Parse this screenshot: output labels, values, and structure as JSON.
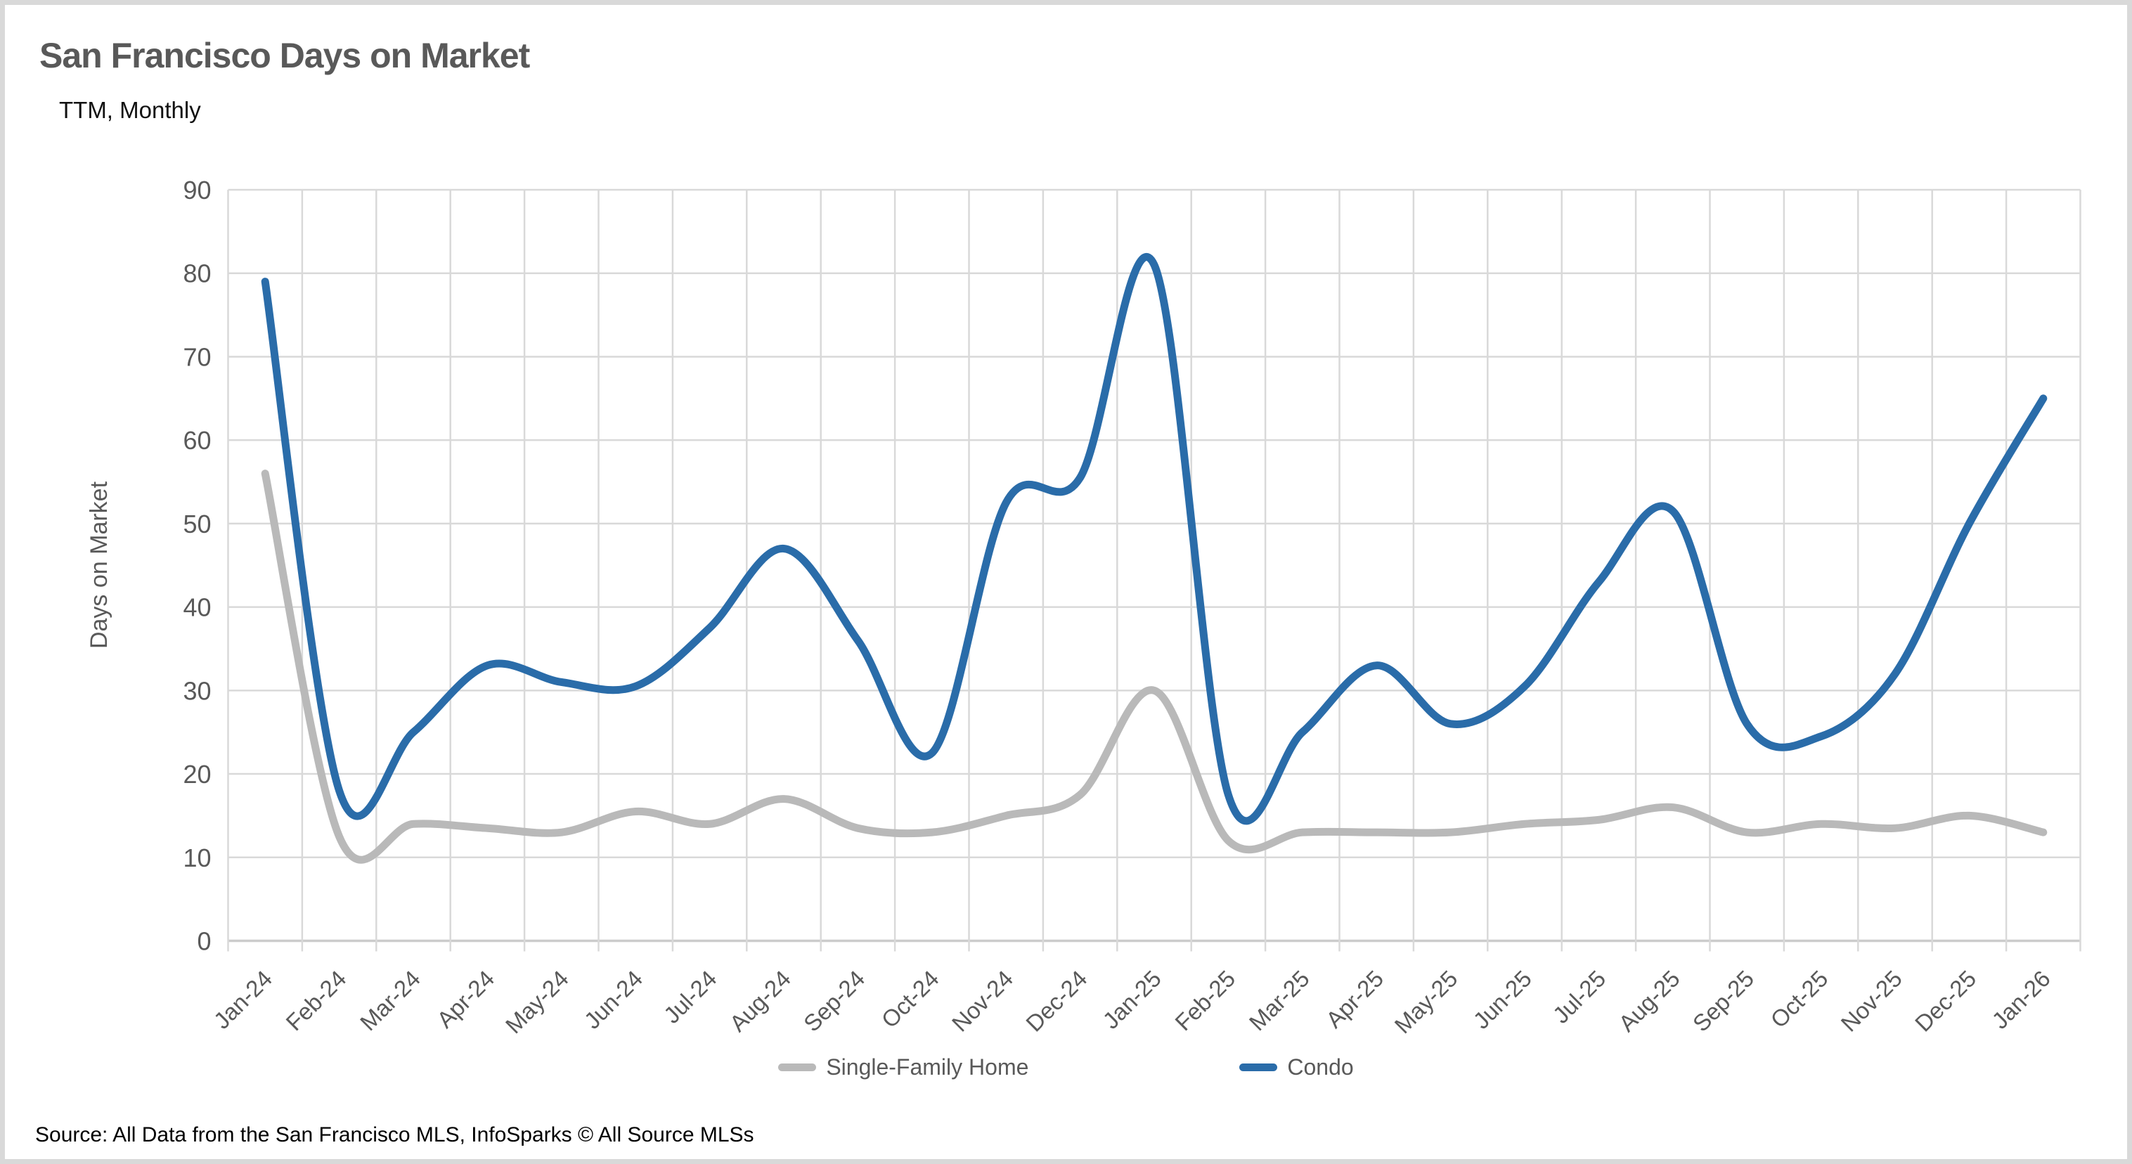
{
  "header": {
    "title": "San Francisco Days on Market",
    "subtitle": "TTM, Monthly"
  },
  "footer": {
    "source": "Source: All Data from the San Francisco MLS, InfoSparks © All Source MLSs"
  },
  "palette": {
    "title_text": "#595959",
    "axis_text": "#595959",
    "gridline": "#d9d9d9",
    "axis_line": "#cccccc",
    "frame_border": "#d9d9d9",
    "sfh_line": "#b9b9b9",
    "condo_line": "#2a6ca9"
  },
  "chart_data": {
    "type": "line",
    "title": "San Francisco Days on Market",
    "subtitle": "TTM, Monthly",
    "xlabel": "",
    "ylabel": "Days on Market",
    "ylim": [
      0,
      90
    ],
    "ytick_step": 10,
    "grid": true,
    "smooth": true,
    "legend_position": "bottom",
    "categories": [
      "Jan-24",
      "Feb-24",
      "Mar-24",
      "Apr-24",
      "May-24",
      "Jun-24",
      "Jul-24",
      "Aug-24",
      "Sep-24",
      "Oct-24",
      "Nov-24",
      "Dec-24",
      "Jan-25",
      "Feb-25",
      "Mar-25",
      "Apr-25",
      "May-25",
      "Jun-25",
      "Jul-25",
      "Aug-25",
      "Sep-25",
      "Oct-25",
      "Nov-25",
      "Dec-25",
      "Jan-26"
    ],
    "series": [
      {
        "name": "Single-Family Home",
        "color": "#b9b9b9",
        "values": [
          56,
          12.5,
          14,
          13.5,
          13,
          15.5,
          14,
          17,
          13.5,
          13,
          15,
          17.5,
          30,
          12,
          13,
          13,
          13,
          14,
          14.5,
          16,
          13,
          14,
          13.5,
          15,
          13
        ]
      },
      {
        "name": "Condo",
        "color": "#2a6ca9",
        "values": [
          79,
          18,
          25,
          33,
          31,
          30.5,
          37.5,
          47,
          36,
          22.5,
          52.5,
          55.5,
          81,
          17.5,
          25,
          33,
          26,
          30.5,
          43,
          51.5,
          26,
          24.5,
          32,
          50,
          65
        ]
      }
    ]
  }
}
